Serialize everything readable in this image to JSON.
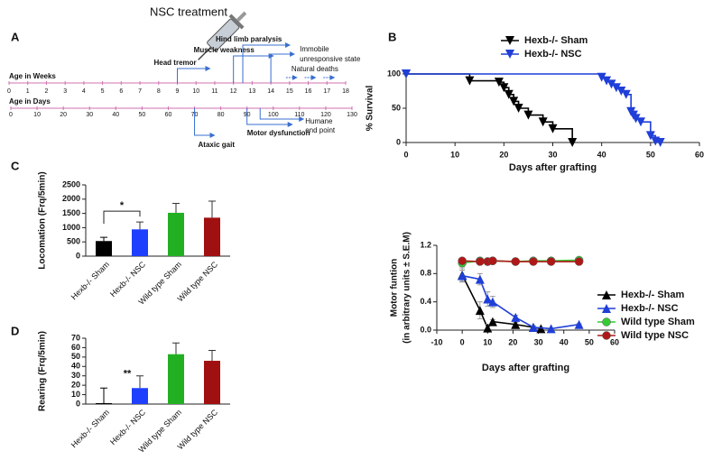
{
  "timeline": {
    "panel": "A",
    "title": "NSC treatment",
    "weeks": {
      "label": "Age in Weeks",
      "lim": [
        0,
        18
      ],
      "ticks": [
        0,
        1,
        2,
        3,
        4,
        5,
        6,
        7,
        8,
        9,
        10,
        11,
        12,
        13,
        14,
        15,
        16,
        17,
        18
      ]
    },
    "days": {
      "label": "Age in Days",
      "lim": [
        0,
        130
      ],
      "ticks": [
        0,
        10,
        20,
        30,
        40,
        50,
        60,
        70,
        80,
        90,
        100,
        110,
        120,
        130
      ]
    },
    "week_events": [
      {
        "label": [
          "Head tremor"
        ],
        "week": 9
      },
      {
        "label": [
          "Muscle weakness"
        ],
        "week": 12
      },
      {
        "label": [
          "Hind limb paralysis"
        ],
        "week": 12.5
      },
      {
        "label": [
          "Immobile",
          "unresponsive state"
        ],
        "week": 14
      },
      {
        "label": [
          "Natural deaths"
        ],
        "week": 15
      }
    ],
    "day_events": [
      {
        "label": [
          "Ataxic gait"
        ],
        "day": 70
      },
      {
        "label": [
          "Motor dysfunction"
        ],
        "day": 90
      },
      {
        "label": [
          "Humane",
          "end point"
        ],
        "day": 95
      }
    ]
  },
  "chart_data": [
    {
      "type": "line",
      "panel": "B",
      "step": true,
      "xlabel": "Days after grafting",
      "ylabel": "% Survival",
      "xlim": [
        0,
        60
      ],
      "xticks": [
        0,
        10,
        20,
        30,
        40,
        50,
        60
      ],
      "ylim": [
        0,
        100
      ],
      "yticks": [
        0,
        50,
        100
      ],
      "legend": "top",
      "series": [
        {
          "name": "Hexb-/- Sham",
          "color": "#000000",
          "marker": "triangle-down",
          "x": [
            0,
            13,
            19,
            20,
            21,
            22,
            23,
            25,
            28,
            30,
            34
          ],
          "values": [
            100,
            90,
            88,
            80,
            70,
            60,
            50,
            40,
            30,
            20,
            0
          ]
        },
        {
          "name": "Hexb-/- NSC",
          "color": "#1f3fd8",
          "marker": "triangle-down",
          "x": [
            0,
            40,
            41,
            42,
            43,
            44,
            45,
            46,
            46.5,
            47,
            48,
            50,
            51,
            52
          ],
          "values": [
            100,
            95,
            90,
            85,
            80,
            75,
            70,
            45,
            40,
            35,
            30,
            10,
            2,
            0
          ]
        }
      ]
    },
    {
      "type": "bar",
      "panel": "C",
      "ylabel": "Locomation (Frq/5min)",
      "categories": [
        "Hexb-/- Sham",
        "Hexb-/- NSC",
        "Wild type Sham",
        "Wild type NSC"
      ],
      "values": [
        530,
        940,
        1520,
        1350
      ],
      "errors": [
        130,
        260,
        330,
        580
      ],
      "colors": [
        "#000000",
        "#1f3fff",
        "#22b022",
        "#a01010"
      ],
      "ylim": [
        0,
        2500
      ],
      "yticks": [
        0,
        500,
        1000,
        1500,
        2000,
        2500
      ],
      "significance": [
        {
          "label": "*",
          "categories": [
            0,
            1
          ]
        }
      ]
    },
    {
      "type": "bar",
      "panel": "D",
      "ylabel": "Rearing (Frq/5min)",
      "categories": [
        "Hexb-/- Sham",
        "Hexb-/- NSC",
        "Wild type Sham",
        "Wild type NSC"
      ],
      "values": [
        1,
        17,
        53,
        46
      ],
      "errors": [
        16,
        13,
        12,
        11
      ],
      "colors": [
        "#000000",
        "#1f3fff",
        "#22b022",
        "#a01010"
      ],
      "ylim": [
        0,
        70
      ],
      "yticks": [
        0,
        10,
        20,
        30,
        40,
        50,
        60,
        70
      ],
      "significance": [
        {
          "label": "**",
          "categories": [
            1
          ]
        }
      ]
    },
    {
      "type": "line",
      "step": false,
      "xlabel": "Days after grafting",
      "ylabel": [
        "Motor funtion",
        "(in arbitrary units ± S.E.M)"
      ],
      "xlim": [
        -10,
        60
      ],
      "xticks": [
        -10,
        0,
        10,
        20,
        30,
        40,
        50,
        60
      ],
      "ylim": [
        0,
        1.2
      ],
      "yticks": [
        {
          "value": 0,
          "label": "0.0"
        },
        0.4,
        0.8,
        1.2
      ],
      "legend": "right",
      "series": [
        {
          "name": "Hexb-/- Sham",
          "color": "#000000",
          "marker": "triangle-up",
          "x": [
            0,
            7,
            10,
            12,
            21,
            28,
            31
          ],
          "values": [
            0.78,
            0.28,
            0.03,
            0.12,
            0.08,
            0.04,
            0.02
          ],
          "errors": [
            0.1,
            0.12,
            0.05,
            0.03,
            0.03,
            0.02,
            0.02
          ]
        },
        {
          "name": "Hexb-/- NSC",
          "color": "#1f3fd8",
          "marker": "triangle-up",
          "x": [
            0,
            7,
            10,
            12,
            21,
            28,
            35,
            46
          ],
          "values": [
            0.77,
            0.72,
            0.44,
            0.4,
            0.18,
            0.04,
            0.02,
            0.08
          ],
          "errors": [
            0.08,
            0.08,
            0.1,
            0.08,
            0.03,
            0.02,
            0.01,
            0.01
          ]
        },
        {
          "name": "Wild type Sham",
          "color": "#33cc33",
          "marker": "circle",
          "x": [
            0,
            7,
            10,
            12,
            21,
            28,
            35,
            46
          ],
          "values": [
            0.95,
            0.98,
            0.97,
            0.98,
            0.97,
            0.98,
            0.98,
            0.99
          ],
          "errors": [
            0.05,
            0.02,
            0.02,
            0.02,
            0.02,
            0.02,
            0.02,
            0.02
          ]
        },
        {
          "name": "Wild type NSC",
          "color": "#b01818",
          "marker": "circle",
          "x": [
            0,
            7,
            10,
            12,
            21,
            28,
            35,
            46
          ],
          "values": [
            0.98,
            0.97,
            0.97,
            0.98,
            0.97,
            0.97,
            0.97,
            0.97
          ],
          "errors": [
            0.02,
            0.02,
            0.02,
            0.02,
            0.02,
            0.02,
            0.02,
            0.02
          ]
        }
      ]
    }
  ]
}
